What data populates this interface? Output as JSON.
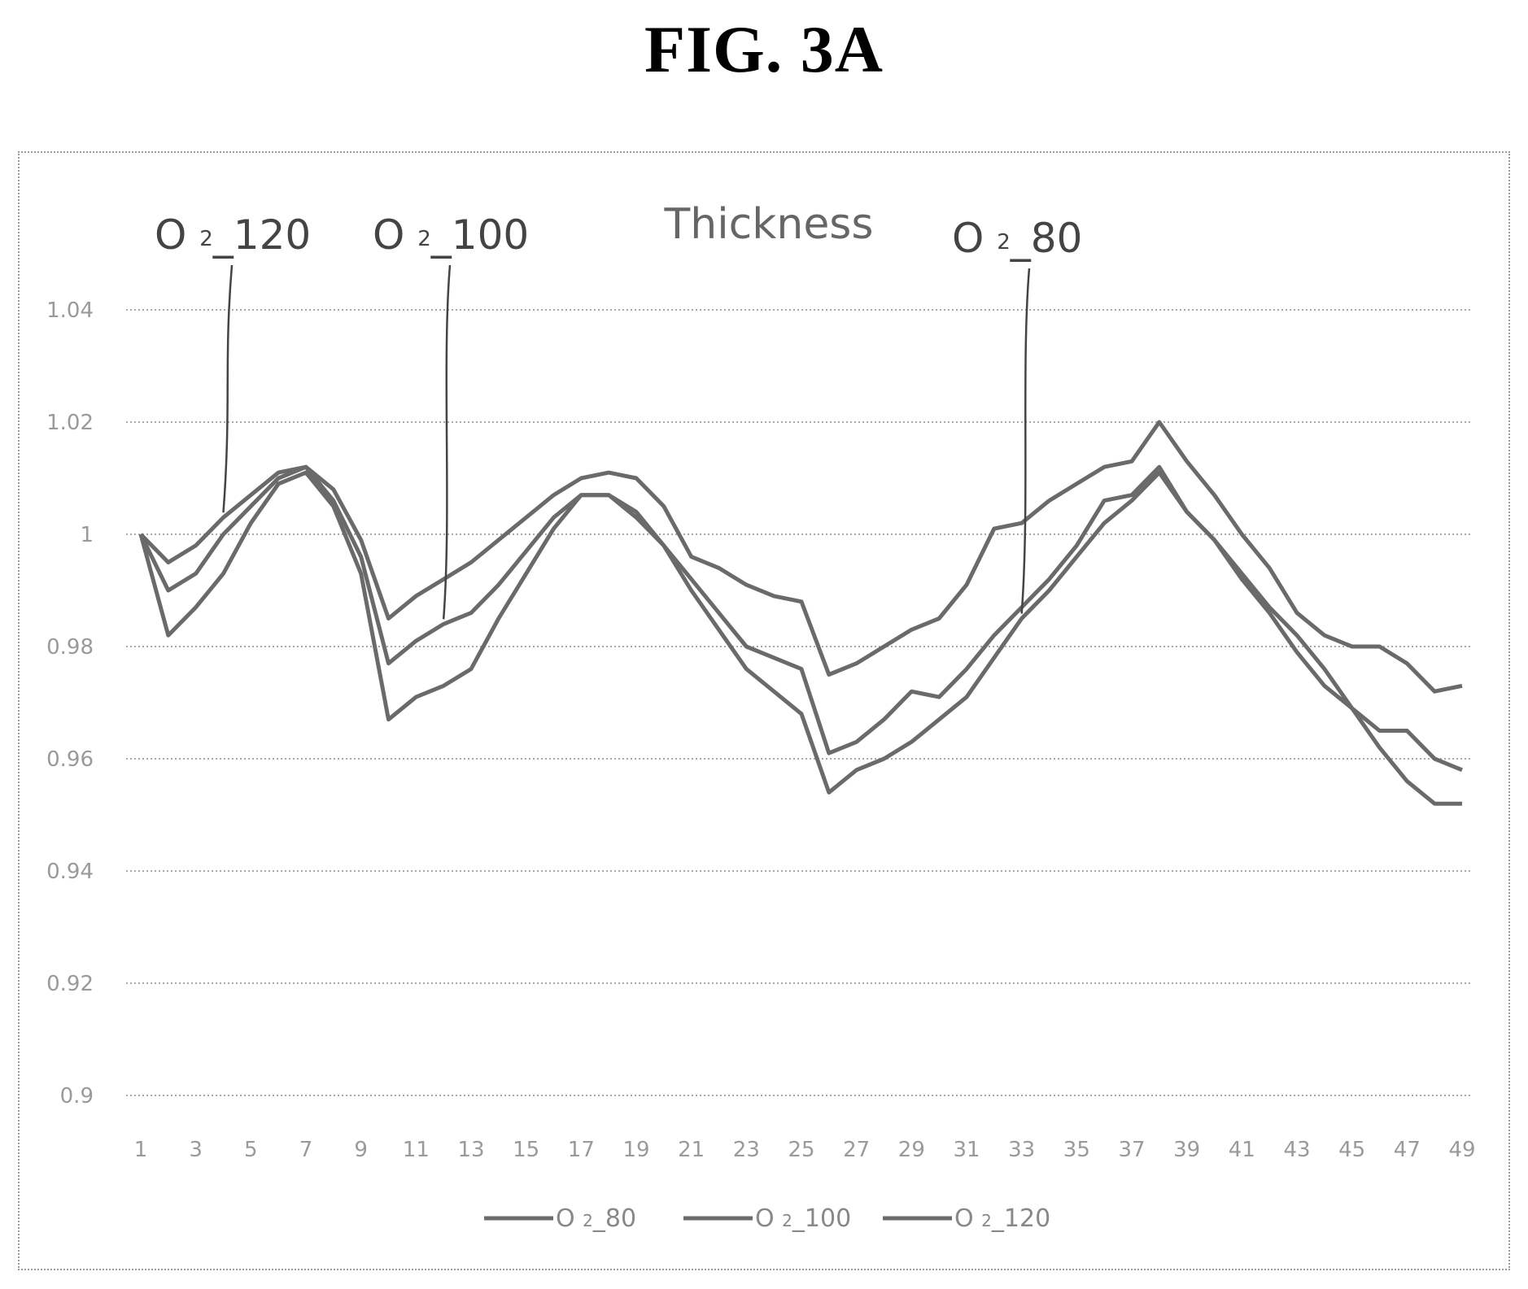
{
  "figure_label": "FIG. 3A",
  "chart_data": {
    "type": "line",
    "title": "Thickness",
    "xlabel": "",
    "ylabel": "",
    "ylim": [
      0.9,
      1.04
    ],
    "y_ticks": [
      "0.9",
      "0.92",
      "0.94",
      "0.96",
      "0.98",
      "1",
      "1.02",
      "1.04"
    ],
    "y_tick_values": [
      0.9,
      0.92,
      0.94,
      0.96,
      0.98,
      1.0,
      1.02,
      1.04
    ],
    "x": [
      1,
      2,
      3,
      4,
      5,
      6,
      7,
      8,
      9,
      10,
      11,
      12,
      13,
      14,
      15,
      16,
      17,
      18,
      19,
      20,
      21,
      22,
      23,
      24,
      25,
      26,
      27,
      28,
      29,
      30,
      31,
      32,
      33,
      34,
      35,
      36,
      37,
      38,
      39,
      40,
      41,
      42,
      43,
      44,
      45,
      46,
      47,
      48,
      49
    ],
    "x_tick_labels": [
      "1",
      "3",
      "5",
      "7",
      "9",
      "11",
      "13",
      "15",
      "17",
      "19",
      "21",
      "23",
      "25",
      "27",
      "29",
      "31",
      "33",
      "35",
      "37",
      "39",
      "41",
      "43",
      "45",
      "47",
      "49"
    ],
    "grid": true,
    "legend_position": "bottom",
    "series": [
      {
        "name": "O₂_80",
        "legend_main": "O",
        "legend_sub": "2",
        "legend_suffix": "_80",
        "values": [
          1.0,
          0.982,
          0.987,
          0.993,
          1.002,
          1.009,
          1.011,
          1.005,
          0.993,
          0.967,
          0.971,
          0.973,
          0.976,
          0.985,
          0.993,
          1.001,
          1.007,
          1.007,
          1.004,
          0.998,
          0.99,
          0.983,
          0.976,
          0.972,
          0.968,
          0.954,
          0.958,
          0.96,
          0.963,
          0.967,
          0.971,
          0.978,
          0.985,
          0.99,
          0.996,
          1.002,
          1.006,
          1.011,
          1.004,
          0.999,
          0.992,
          0.986,
          0.979,
          0.973,
          0.969,
          0.962,
          0.956,
          0.952,
          0.952
        ]
      },
      {
        "name": "O₂_100",
        "legend_main": "O",
        "legend_sub": "2",
        "legend_suffix": "_100",
        "values": [
          1.0,
          0.99,
          0.993,
          1.0,
          1.005,
          1.01,
          1.012,
          1.006,
          0.996,
          0.977,
          0.981,
          0.984,
          0.986,
          0.991,
          0.997,
          1.003,
          1.007,
          1.007,
          1.003,
          0.998,
          0.992,
          0.986,
          0.98,
          0.978,
          0.976,
          0.961,
          0.963,
          0.967,
          0.972,
          0.971,
          0.976,
          0.982,
          0.987,
          0.992,
          0.998,
          1.006,
          1.007,
          1.012,
          1.004,
          0.999,
          0.993,
          0.987,
          0.982,
          0.976,
          0.969,
          0.965,
          0.965,
          0.96,
          0.958
        ]
      },
      {
        "name": "O₂_120",
        "legend_main": "O",
        "legend_sub": "2",
        "legend_suffix": "_120",
        "values": [
          1.0,
          0.995,
          0.998,
          1.003,
          1.007,
          1.011,
          1.012,
          1.008,
          0.999,
          0.985,
          0.989,
          0.992,
          0.995,
          0.999,
          1.003,
          1.007,
          1.01,
          1.011,
          1.01,
          1.005,
          0.996,
          0.994,
          0.991,
          0.989,
          0.988,
          0.975,
          0.977,
          0.98,
          0.983,
          0.985,
          0.991,
          1.001,
          1.002,
          1.006,
          1.009,
          1.012,
          1.013,
          1.02,
          1.013,
          1.007,
          1.0,
          0.994,
          0.986,
          0.982,
          0.98,
          0.98,
          0.977,
          0.972,
          0.973
        ]
      }
    ],
    "annotations": [
      {
        "main": "O",
        "sub": "2",
        "suffix": "_120",
        "series_index": 2,
        "point_index": 3
      },
      {
        "main": "O",
        "sub": "2",
        "suffix": "_100",
        "series_index": 1,
        "point_index": 11
      },
      {
        "main": "O",
        "sub": "2",
        "suffix": "_80",
        "series_index": 0,
        "point_index": 32
      }
    ]
  }
}
